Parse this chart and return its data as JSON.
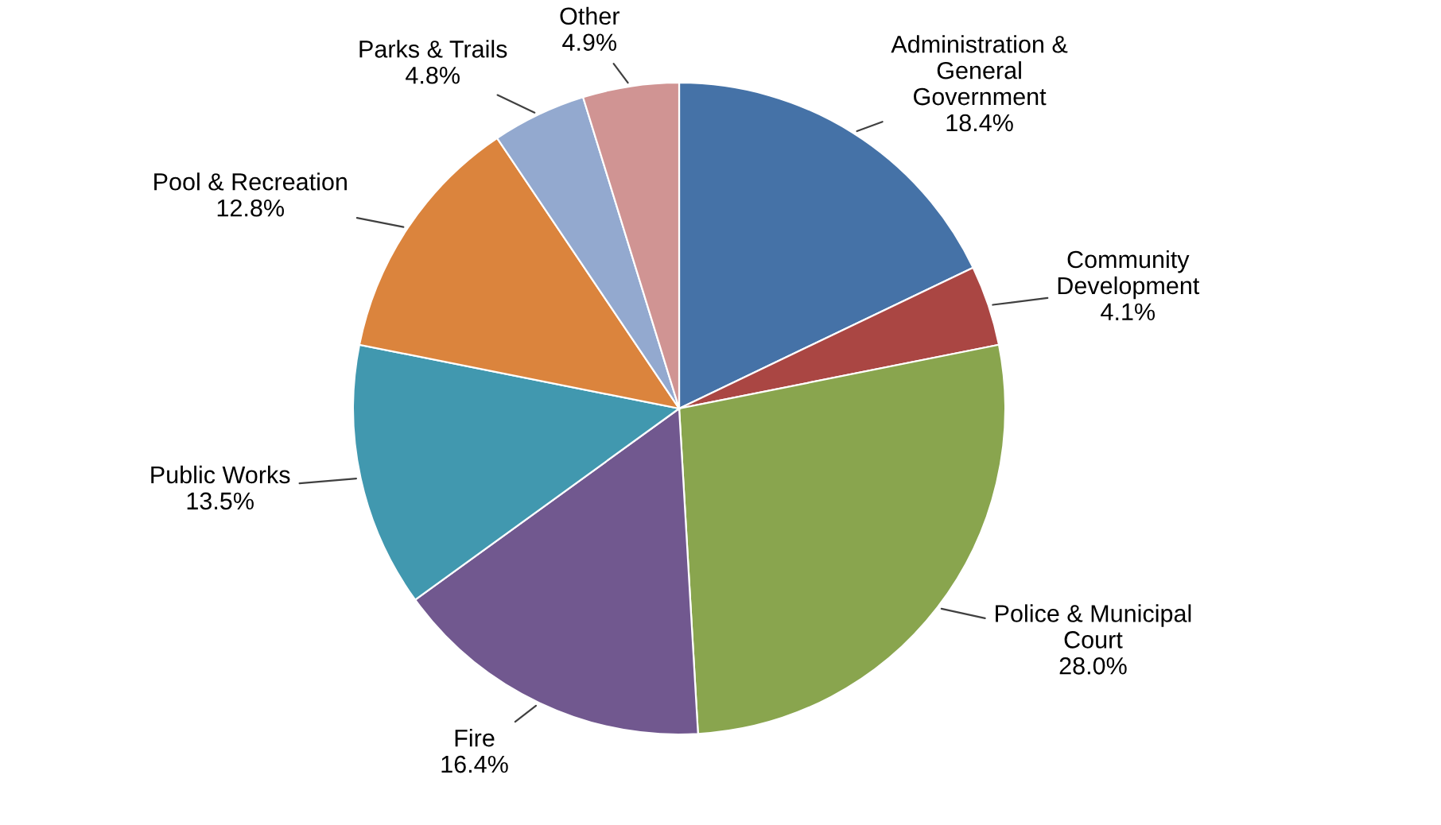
{
  "chart_data": {
    "type": "pie",
    "categories": [
      "Administration &\nGeneral\nGovernment",
      "Community\nDevelopment",
      "Police & Municipal\nCourt",
      "Fire",
      "Public Works",
      "Pool & Recreation",
      "Parks & Trails",
      "Other"
    ],
    "values": [
      18.4,
      4.1,
      28.0,
      16.4,
      13.5,
      12.8,
      4.8,
      4.9
    ],
    "value_labels": [
      "18.4%",
      "4.1%",
      "28.0%",
      "16.4%",
      "13.5%",
      "12.8%",
      "4.8%",
      "4.9%"
    ],
    "colors": [
      "#4572a7",
      "#aa4643",
      "#89a54e",
      "#71588f",
      "#4198af",
      "#db843d",
      "#93a9cf",
      "#d09493"
    ]
  }
}
